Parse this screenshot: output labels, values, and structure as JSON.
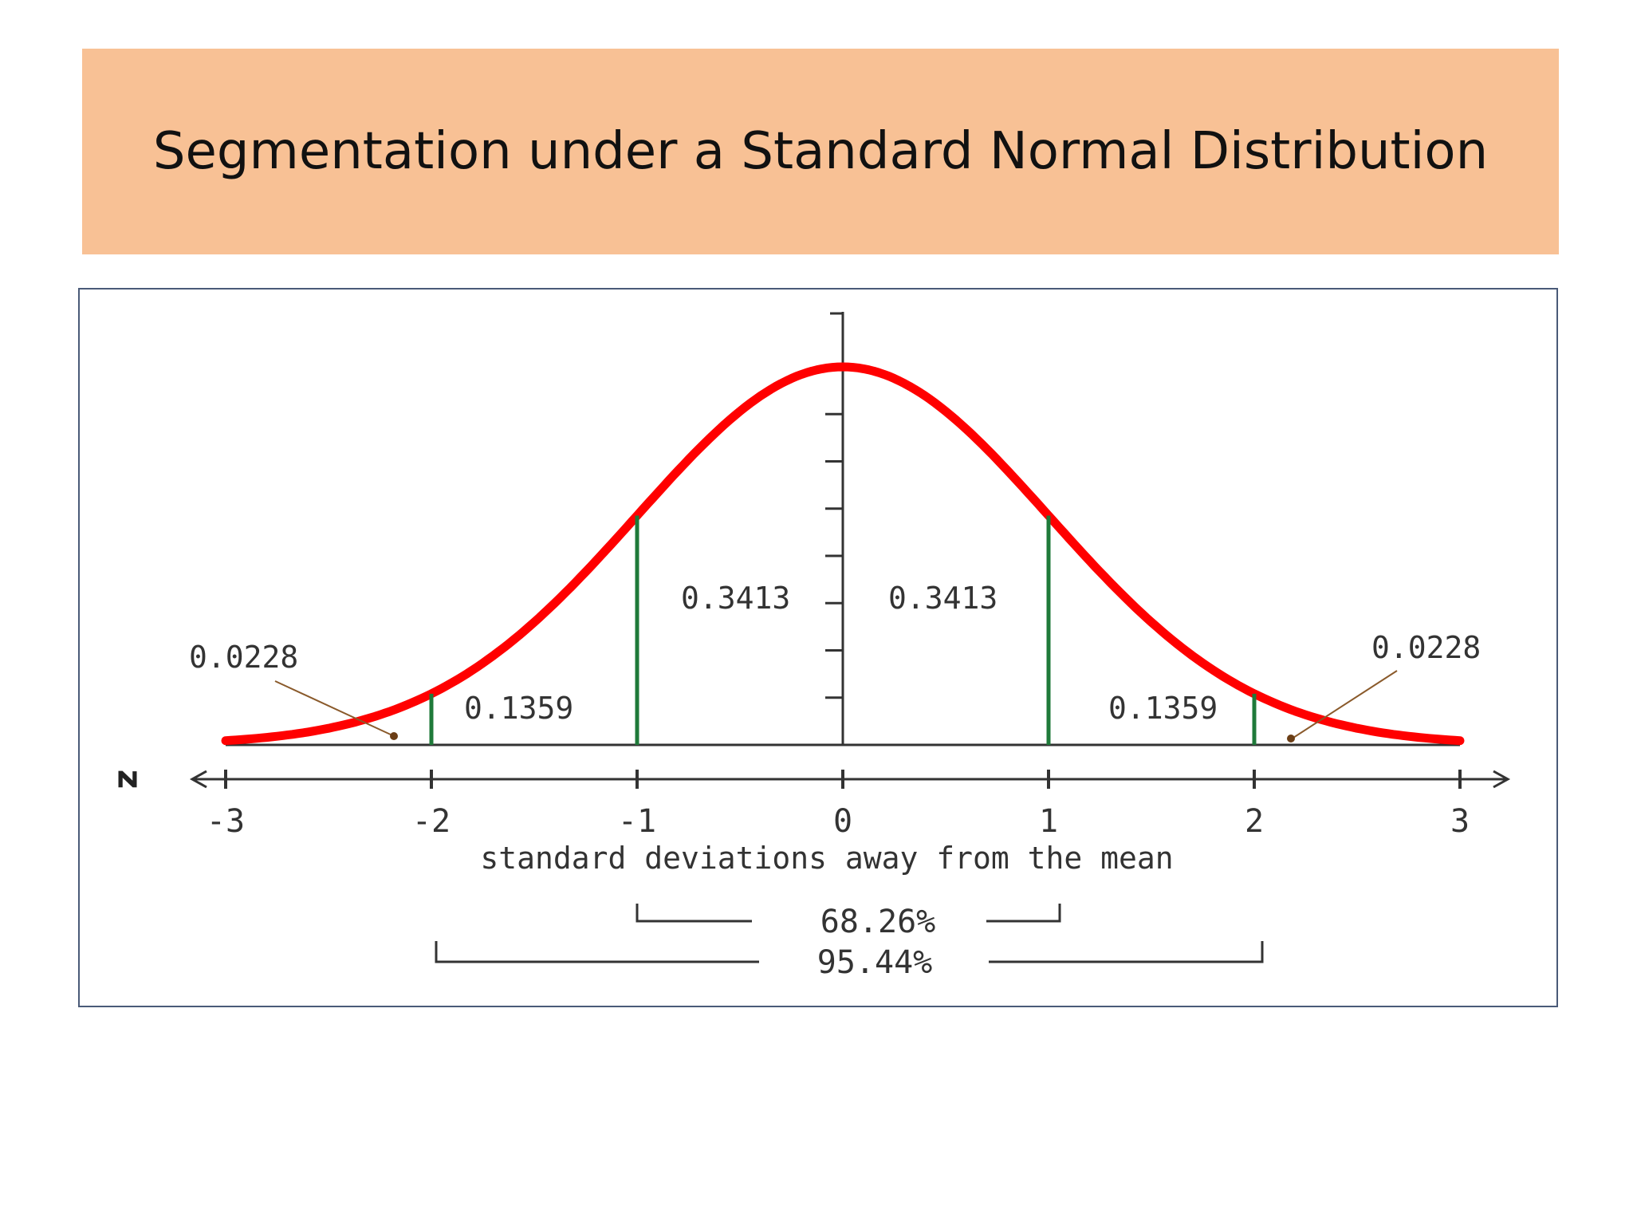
{
  "slide": {
    "title": "Segmentation under a Standard Normal Distribution",
    "banner_color": "#f8c195"
  },
  "chart_data": {
    "type": "area",
    "title": "",
    "xlabel": "standard deviations away from the mean",
    "axis_symbol": "z",
    "xlim": [
      -3,
      3
    ],
    "x_ticks": [
      -3,
      -2,
      -1,
      0,
      1,
      2,
      3
    ],
    "x_tick_labels": [
      "-3",
      "-2",
      "-1",
      "0",
      "1",
      "2",
      "3"
    ],
    "curve": "standard normal density",
    "curve_color": "#ff0000",
    "divider_color": "#1f7a3a",
    "dividers": [
      -2,
      -1,
      1,
      2
    ],
    "segments": [
      {
        "label": "0.0228",
        "from": -3,
        "to": -2
      },
      {
        "label": "0.1359",
        "from": -2,
        "to": -1
      },
      {
        "label": "0.3413",
        "from": -1,
        "to": 0
      },
      {
        "label": "0.3413",
        "from": 0,
        "to": 1
      },
      {
        "label": "0.1359",
        "from": 1,
        "to": 2
      },
      {
        "label": "0.0228",
        "from": 2,
        "to": 3
      }
    ],
    "brackets": [
      {
        "label": "68.26%",
        "from": -1,
        "to": 1
      },
      {
        "label": "95.44%",
        "from": -2,
        "to": 2
      }
    ]
  }
}
